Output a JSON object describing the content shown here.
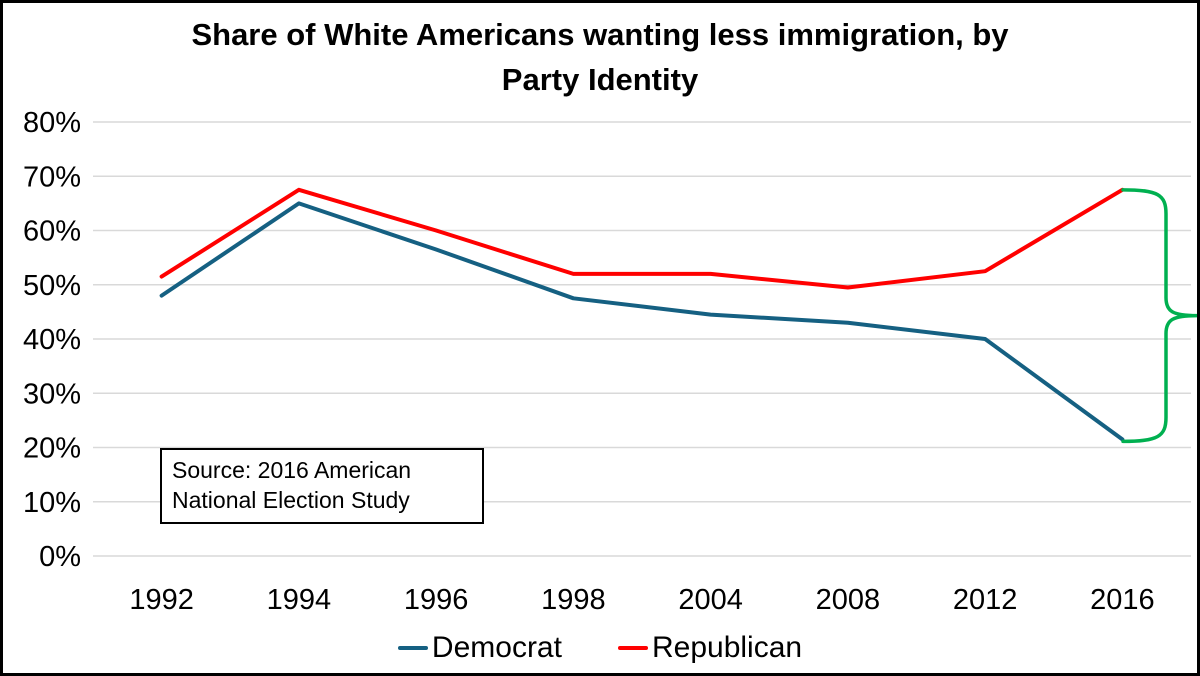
{
  "title_lines": {
    "line1": "Share of White Americans wanting less immigration, by",
    "line2": "Party Identity"
  },
  "source_note": "Source: 2016 American National Election Study",
  "legend_items": [
    {
      "label": "Democrat",
      "color": "#156082"
    },
    {
      "label": "Republican",
      "color": "#FF0000"
    }
  ],
  "colors": {
    "grid": "#D9D9D9",
    "democrat": "#156082",
    "republican": "#FF0000",
    "brace": "#00B050",
    "text": "#000000",
    "frame": "#000000"
  },
  "chart_data": {
    "type": "line",
    "title": "Share of White Americans wanting less immigration, by Party Identity",
    "categories": [
      "1992",
      "1994",
      "1996",
      "1998",
      "2004",
      "2008",
      "2012",
      "2016"
    ],
    "series": [
      {
        "name": "Democrat",
        "color": "#156082",
        "values": [
          48,
          65,
          56.5,
          47.5,
          44.5,
          43,
          40,
          21.5
        ]
      },
      {
        "name": "Republican",
        "color": "#FF0000",
        "values": [
          51.5,
          67.5,
          60,
          52,
          52,
          49.5,
          52.5,
          67.5
        ]
      }
    ],
    "xlabel": "",
    "ylabel": "",
    "ylim": [
      0,
      80
    ],
    "ytick_step": 10,
    "yticks": [
      "0%",
      "10%",
      "20%",
      "30%",
      "40%",
      "50%",
      "60%",
      "70%",
      "80%"
    ],
    "grid": true,
    "legend_position": "bottom",
    "annotations": [
      {
        "type": "right-curly-brace",
        "color": "#00B050",
        "x_category": "2016",
        "from_value": 67.5,
        "to_value": 21.5
      }
    ]
  }
}
